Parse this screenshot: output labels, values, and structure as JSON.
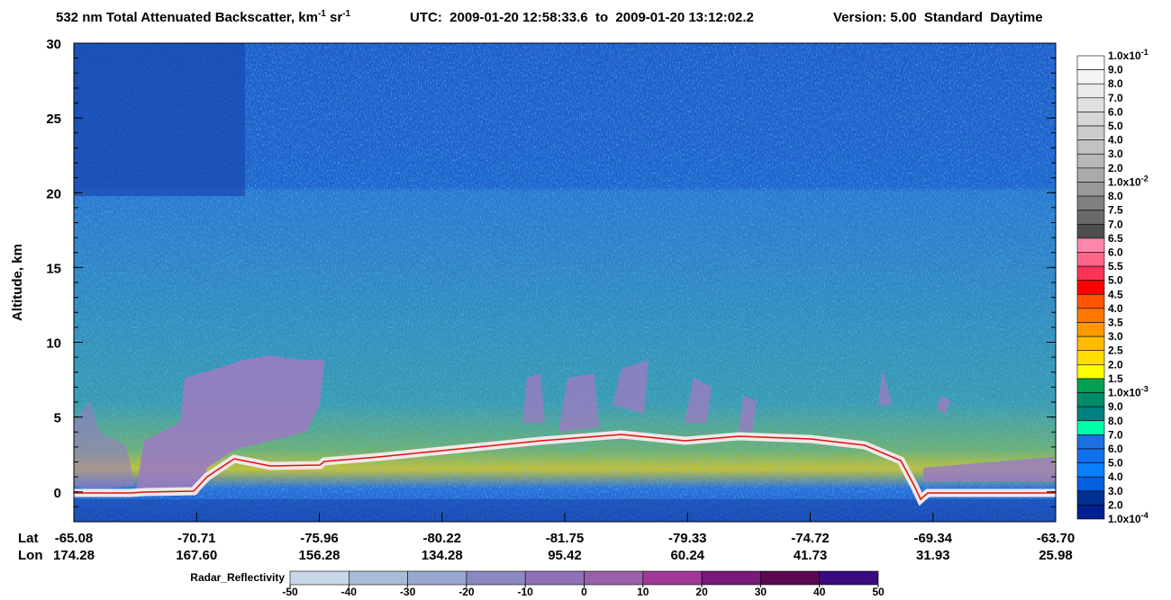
{
  "chart_data": {
    "type": "image-plot",
    "title": {
      "main": "532 nm Total Attenuated Backscatter, km",
      "sup1": "-1",
      "mid": " sr",
      "sup2": "-1",
      "utc": "UTC:  2009-01-20 12:58:33.6  to  2009-01-20 13:12:02.2",
      "version": "Version: 5.00  Standard  Daytime"
    },
    "y_label": "Altitude, km",
    "ylim": [
      -2,
      30
    ],
    "yticks": [
      0,
      5,
      10,
      15,
      20,
      25,
      30
    ],
    "x_axis": {
      "lat_label": "Lat",
      "lon_label": "Lon",
      "lat": [
        "-65.08",
        "-70.71",
        "-75.96",
        "-80.22",
        "-81.75",
        "-79.33",
        "-74.72",
        "-69.34",
        "-63.70"
      ],
      "lon": [
        "174.28",
        "167.60",
        "156.28",
        "134.28",
        "95.42",
        "60.24",
        "41.73",
        "31.93",
        "25.98"
      ]
    },
    "colorbar": {
      "labels": [
        {
          "label": "1.0x10",
          "exp": "-1"
        },
        "9.0",
        "8.0",
        "7.0",
        "6.0",
        "5.0",
        "4.0",
        "3.0",
        "2.0",
        {
          "label": "1.0x10",
          "exp": "-2"
        },
        "8.0",
        "7.5",
        "7.0",
        "6.5",
        "6.0",
        "5.5",
        "5.0",
        "4.5",
        "4.0",
        "3.5",
        "3.0",
        "2.5",
        "2.0",
        "1.5",
        {
          "label": "1.0x10",
          "exp": "-3"
        },
        "9.0",
        "8.0",
        "7.0",
        "6.0",
        "5.0",
        "4.0",
        "3.0",
        "2.0",
        {
          "label": "1.0x10",
          "exp": "-4"
        }
      ],
      "colors": [
        "#ffffff",
        "#f5f5f5",
        "#ebebeb",
        "#e0e0e0",
        "#d6d6d6",
        "#cccccc",
        "#c2c2c2",
        "#b8b8b8",
        "#aaaaaa",
        "#999999",
        "#808080",
        "#6a6a6a",
        "#4f4f4f",
        "#ff88aa",
        "#ff6688",
        "#ff3355",
        "#ff0000",
        "#ff5500",
        "#ff7700",
        "#ff9900",
        "#ffbb00",
        "#ffdd00",
        "#ffff00",
        "#00a050",
        "#008c6a",
        "#008080",
        "#00ffaa",
        "#1a70e0",
        "#1070f0",
        "#0a80ff",
        "#0060e0",
        "#003090",
        "#002090"
      ]
    },
    "radar_colorbar": {
      "label": "Radar_Reflectivity",
      "ticks": [
        -50,
        -40,
        -30,
        -20,
        -10,
        0,
        10,
        20,
        30,
        40,
        50
      ],
      "colors": [
        "#c8d8e8",
        "#a8bcd8",
        "#98a8d0",
        "#8c88c0",
        "#9070b8",
        "#9860a8",
        "#a03898",
        "#781878",
        "#580850",
        "#3a0a80"
      ]
    }
  }
}
